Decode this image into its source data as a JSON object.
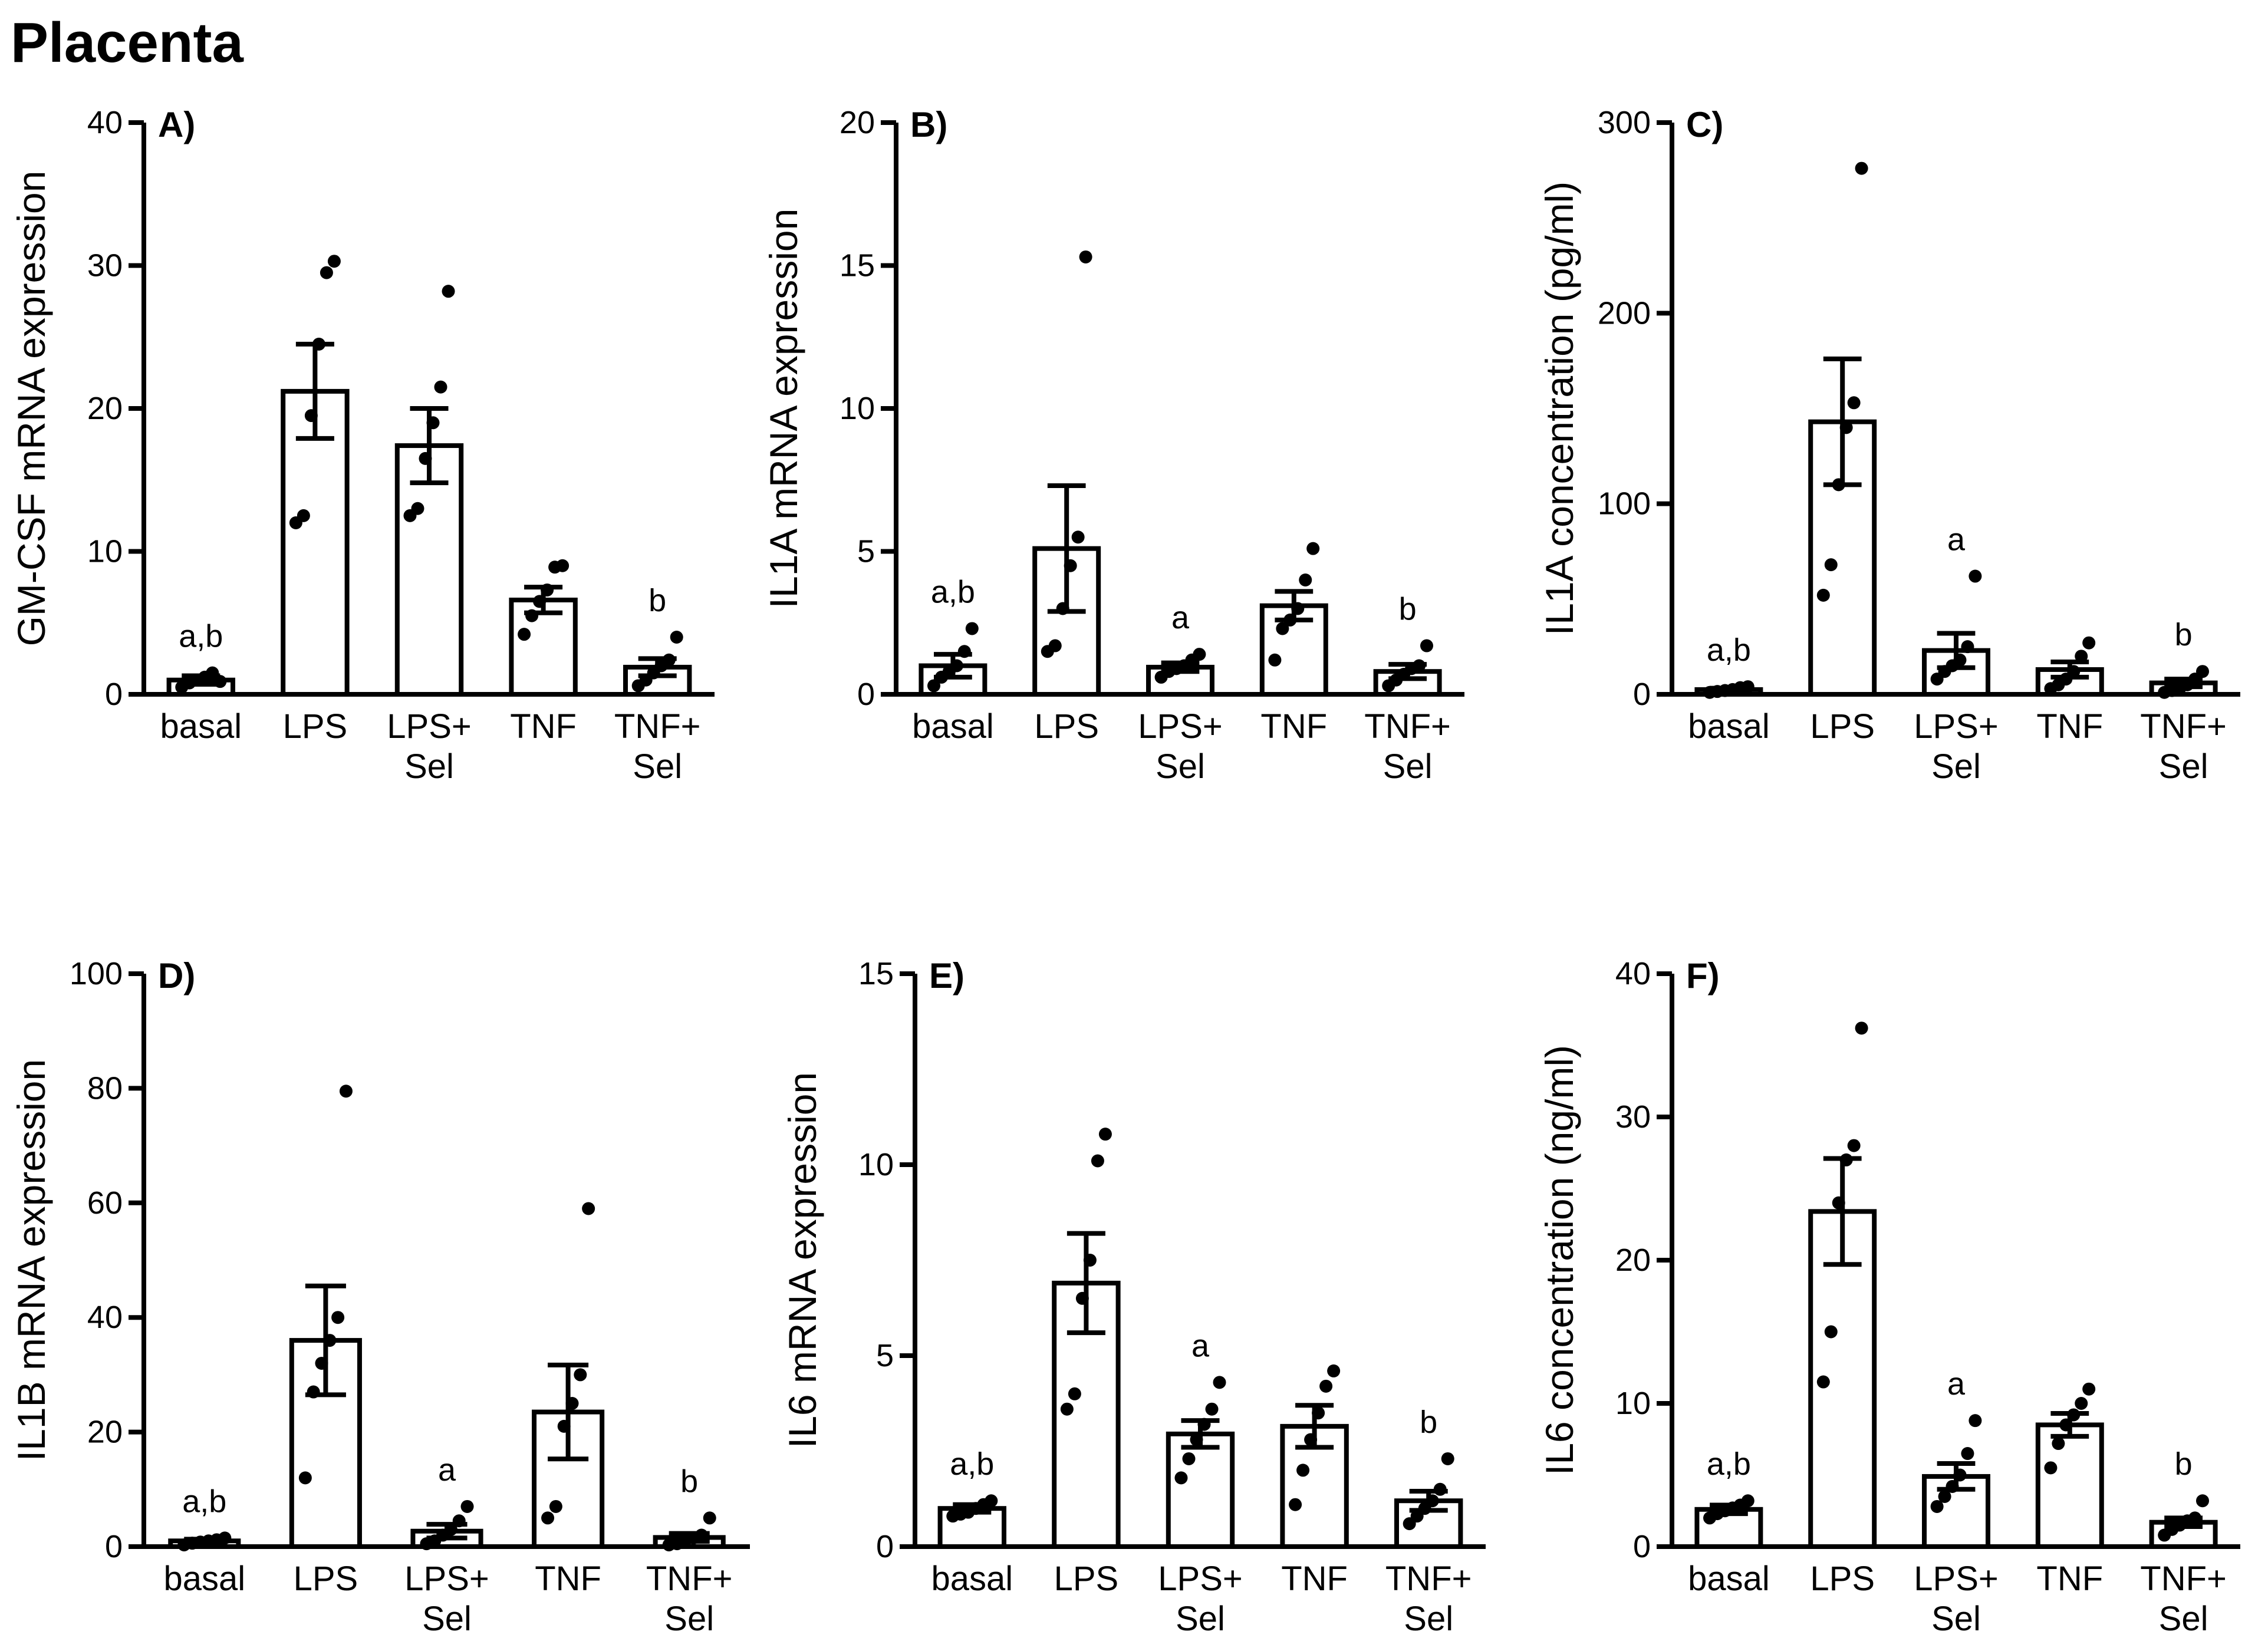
{
  "figure_title": "Placenta",
  "chart_data": [
    {
      "type": "bar",
      "panel_label": "A)",
      "ylabel": "GM-CSF mRNA expression",
      "ylim": [
        0,
        40
      ],
      "yticks": [
        0,
        10,
        20,
        30,
        40
      ],
      "categories": [
        [
          "basal"
        ],
        [
          "LPS"
        ],
        [
          "LPS+",
          "Sel"
        ],
        [
          "TNF"
        ],
        [
          "TNF+",
          "Sel"
        ]
      ],
      "means": [
        1.0,
        21.2,
        17.4,
        6.6,
        1.9
      ],
      "sem": [
        0.3,
        3.3,
        2.6,
        0.9,
        0.6
      ],
      "points": [
        [
          0.5,
          0.8,
          1.0,
          1.2,
          1.5,
          0.9
        ],
        [
          12.0,
          12.5,
          19.5,
          24.5,
          29.5,
          30.3
        ],
        [
          12.5,
          13.0,
          16.5,
          19.0,
          21.5,
          28.2
        ],
        [
          4.2,
          5.5,
          6.5,
          7.3,
          8.9,
          9.0
        ],
        [
          0.6,
          1.0,
          1.5,
          2.0,
          2.4,
          4.0
        ]
      ],
      "annotations": [
        "a,b",
        "",
        "",
        "",
        "b"
      ]
    },
    {
      "type": "bar",
      "panel_label": "B)",
      "ylabel": "IL1A mRNA expression",
      "ylim": [
        0,
        20
      ],
      "yticks": [
        0,
        5,
        10,
        15,
        20
      ],
      "categories": [
        [
          "basal"
        ],
        [
          "LPS"
        ],
        [
          "LPS+",
          "Sel"
        ],
        [
          "TNF"
        ],
        [
          "TNF+",
          "Sel"
        ]
      ],
      "means": [
        1.0,
        5.1,
        0.95,
        3.1,
        0.8
      ],
      "sem": [
        0.4,
        2.2,
        0.15,
        0.5,
        0.25
      ],
      "points": [
        [
          0.3,
          0.6,
          0.8,
          1.0,
          1.5,
          2.3
        ],
        [
          1.5,
          1.7,
          3.0,
          4.5,
          5.5,
          15.3
        ],
        [
          0.6,
          0.8,
          0.9,
          1.0,
          1.2,
          1.4
        ],
        [
          1.2,
          2.3,
          2.6,
          3.0,
          4.0,
          5.1
        ],
        [
          0.3,
          0.5,
          0.7,
          0.9,
          1.0,
          1.7
        ]
      ],
      "annotations": [
        "a,b",
        "",
        "a",
        "",
        "b"
      ]
    },
    {
      "type": "bar",
      "panel_label": "C)",
      "ylabel": "IL1A concentration (pg/ml)",
      "ylim": [
        0,
        300
      ],
      "yticks": [
        0,
        100,
        200,
        300
      ],
      "categories": [
        [
          "basal"
        ],
        [
          "LPS"
        ],
        [
          "LPS+",
          "Sel"
        ],
        [
          "TNF"
        ],
        [
          "TNF+",
          "Sel"
        ]
      ],
      "means": [
        2.5,
        143,
        23,
        13,
        6
      ],
      "sem": [
        0.7,
        33,
        9,
        4,
        2
      ],
      "points": [
        [
          1.0,
          1.5,
          2.0,
          2.5,
          3.5,
          4.0
        ],
        [
          52,
          68,
          110,
          140,
          153,
          276
        ],
        [
          8,
          12,
          15,
          18,
          25,
          62
        ],
        [
          3,
          5,
          8,
          12,
          20,
          27
        ],
        [
          1,
          2,
          3,
          5,
          8,
          12
        ]
      ],
      "annotations": [
        "a,b",
        "",
        "a",
        "",
        "b"
      ]
    },
    {
      "type": "bar",
      "panel_label": "D)",
      "ylabel": "IL1B mRNA expression",
      "ylim": [
        0,
        100
      ],
      "yticks": [
        0,
        20,
        40,
        60,
        80,
        100
      ],
      "categories": [
        [
          "basal"
        ],
        [
          "LPS"
        ],
        [
          "LPS+",
          "Sel"
        ],
        [
          "TNF"
        ],
        [
          "TNF+",
          "Sel"
        ]
      ],
      "means": [
        1.0,
        36,
        2.7,
        23.5,
        1.6
      ],
      "sem": [
        0.3,
        9.5,
        1.2,
        8.2,
        0.7
      ],
      "points": [
        [
          0.3,
          0.6,
          0.8,
          1.0,
          1.2,
          1.5
        ],
        [
          12,
          27,
          32,
          36,
          40,
          79.5
        ],
        [
          0.5,
          1.0,
          2.0,
          3.0,
          4.5,
          7.0
        ],
        [
          5,
          7,
          21,
          25,
          30,
          59
        ],
        [
          0.3,
          0.5,
          1.0,
          1.5,
          2.0,
          5.0
        ]
      ],
      "annotations": [
        "a,b",
        "",
        "a",
        "",
        "b"
      ]
    },
    {
      "type": "bar",
      "panel_label": "E)",
      "ylabel": "IL6 mRNA expression",
      "ylim": [
        0,
        15
      ],
      "yticks": [
        0,
        5,
        10,
        15
      ],
      "categories": [
        [
          "basal"
        ],
        [
          "LPS"
        ],
        [
          "LPS+",
          "Sel"
        ],
        [
          "TNF"
        ],
        [
          "TNF+",
          "Sel"
        ]
      ],
      "means": [
        1.0,
        6.9,
        2.95,
        3.15,
        1.2
      ],
      "sem": [
        0.1,
        1.3,
        0.35,
        0.55,
        0.25
      ],
      "points": [
        [
          0.8,
          0.85,
          0.9,
          1.0,
          1.1,
          1.2
        ],
        [
          3.6,
          4.0,
          6.5,
          7.5,
          10.1,
          10.8
        ],
        [
          1.8,
          2.3,
          2.8,
          3.2,
          3.6,
          4.3
        ],
        [
          1.1,
          2.0,
          2.8,
          3.5,
          4.2,
          4.6
        ],
        [
          0.6,
          0.8,
          1.0,
          1.2,
          1.5,
          2.3
        ]
      ],
      "annotations": [
        "a,b",
        "",
        "a",
        "",
        "b"
      ]
    },
    {
      "type": "bar",
      "panel_label": "F)",
      "ylabel": "IL6 concentration (ng/ml)",
      "ylim": [
        0,
        40
      ],
      "yticks": [
        0,
        10,
        20,
        30,
        40
      ],
      "categories": [
        [
          "basal"
        ],
        [
          "LPS"
        ],
        [
          "LPS+",
          "Sel"
        ],
        [
          "TNF"
        ],
        [
          "TNF+",
          "Sel"
        ]
      ],
      "means": [
        2.6,
        23.4,
        4.9,
        8.5,
        1.7
      ],
      "sem": [
        0.3,
        3.7,
        0.9,
        0.8,
        0.3
      ],
      "points": [
        [
          2.0,
          2.3,
          2.5,
          2.7,
          2.9,
          3.2
        ],
        [
          11.5,
          15,
          24,
          27,
          28,
          36.2
        ],
        [
          2.8,
          3.5,
          4.2,
          5.0,
          6.5,
          8.8
        ],
        [
          5.5,
          7.2,
          8.5,
          9.2,
          10.0,
          11.0
        ],
        [
          0.8,
          1.2,
          1.5,
          1.8,
          2.0,
          3.2
        ]
      ],
      "annotations": [
        "a,b",
        "",
        "a",
        "",
        "b"
      ]
    }
  ]
}
